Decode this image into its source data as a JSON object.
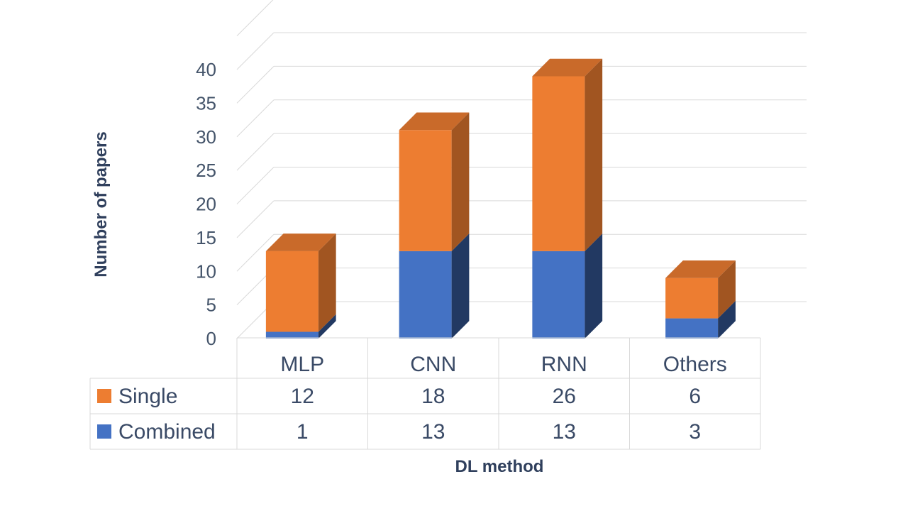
{
  "chart_data": {
    "type": "bar",
    "stacked": true,
    "three_d": true,
    "categories": [
      "MLP",
      "CNN",
      "RNN",
      "Others"
    ],
    "series": [
      {
        "name": "Combined",
        "values": [
          1,
          13,
          13,
          3
        ],
        "color": "#4472c4"
      },
      {
        "name": "Single",
        "values": [
          12,
          18,
          26,
          6
        ],
        "color": "#ed7d31"
      }
    ],
    "title": "",
    "xlabel": "DL method",
    "ylabel": "Number of papers",
    "ylim": [
      0,
      40
    ],
    "yticks": [
      0,
      5,
      10,
      15,
      20,
      25,
      30,
      35,
      40
    ],
    "grid": true,
    "legend": "data-table"
  }
}
